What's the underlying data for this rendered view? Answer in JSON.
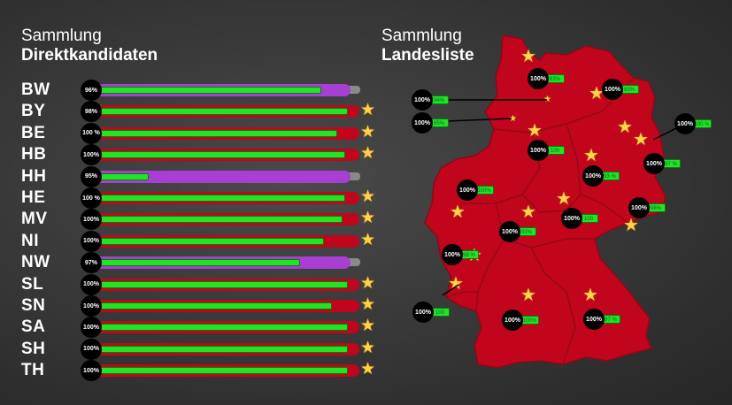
{
  "left": {
    "title_line1": "Sammlung",
    "title_line2": "Direktkandidaten"
  },
  "right": {
    "title_line1": "Sammlung",
    "title_line2": "Landesliste"
  },
  "colors": {
    "complete": "#c0051d",
    "incomplete": "#a83ed3",
    "progress": "#22e324",
    "star": "#ffd24a"
  },
  "direct": [
    {
      "code": "BW",
      "label": "96%",
      "progress": 0.87,
      "complete": false,
      "star": false
    },
    {
      "code": "BY",
      "label": "98%",
      "progress": 0.97,
      "complete": true,
      "star": true
    },
    {
      "code": "BE",
      "label": "100 %",
      "progress": 0.93,
      "complete": true,
      "star": true
    },
    {
      "code": "HB",
      "label": "100%",
      "progress": 0.96,
      "complete": true,
      "star": true
    },
    {
      "code": "HH",
      "label": "95%",
      "progress": 0.22,
      "complete": false,
      "star": false
    },
    {
      "code": "HE",
      "label": "100 %",
      "progress": 0.96,
      "complete": true,
      "star": true
    },
    {
      "code": "MV",
      "label": "100%",
      "progress": 0.95,
      "complete": true,
      "star": true
    },
    {
      "code": "NI",
      "label": "100%",
      "progress": 0.88,
      "complete": true,
      "star": true
    },
    {
      "code": "NW",
      "label": "97%",
      "progress": 0.79,
      "complete": false,
      "star": false
    },
    {
      "code": "SL",
      "label": "100%",
      "progress": 0.97,
      "complete": true,
      "star": true
    },
    {
      "code": "SN",
      "label": "100%",
      "progress": 0.91,
      "complete": true,
      "star": true
    },
    {
      "code": "SA",
      "label": "100%",
      "progress": 0.97,
      "complete": true,
      "star": true
    },
    {
      "code": "SH",
      "label": "100%",
      "progress": 0.97,
      "complete": true,
      "star": true
    },
    {
      "code": "TH",
      "label": "100%",
      "progress": 0.97,
      "complete": true,
      "star": true
    }
  ],
  "lists": [
    {
      "state": "SH",
      "label": "100%",
      "pill": "83%"
    },
    {
      "state": "MV",
      "label": "100%",
      "pill": "83%"
    },
    {
      "state": "HH",
      "label": "100%",
      "pill": "94%"
    },
    {
      "state": "HB",
      "label": "100%",
      "pill": "85%"
    },
    {
      "state": "BE",
      "label": "100%",
      "pill": "100 %"
    },
    {
      "state": "NI",
      "label": "100%",
      "pill": "100"
    },
    {
      "state": "ST",
      "label": "100%",
      "pill": "93 %"
    },
    {
      "state": "BB",
      "label": "100%",
      "pill": "97 %"
    },
    {
      "state": "NW",
      "label": "100%",
      "pill": "100%"
    },
    {
      "state": "SN",
      "label": "100%",
      "pill": "98%"
    },
    {
      "state": "TH",
      "label": "100%",
      "pill": "100"
    },
    {
      "state": "HE",
      "label": "100%",
      "pill": "93%"
    },
    {
      "state": "RP",
      "label": "100%",
      "pill": "98 %"
    },
    {
      "state": "SL",
      "label": "100%",
      "pill": "100"
    },
    {
      "state": "BW",
      "label": "100%",
      "pill": "100%"
    },
    {
      "state": "BY",
      "label": "100%",
      "pill": "97 %"
    }
  ]
}
